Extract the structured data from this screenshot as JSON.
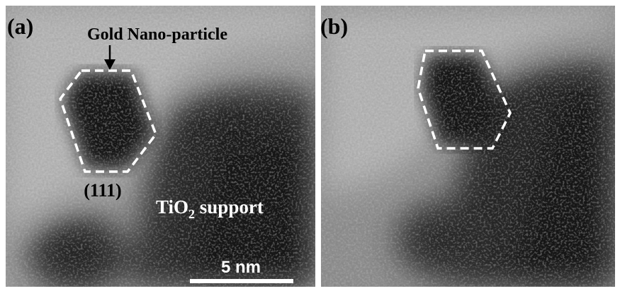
{
  "panels": [
    {
      "label": "(a)",
      "particle_label": "Gold Nano-particle",
      "facet_label": "(111)",
      "support_label": {
        "parts": [
          "TiO",
          "2",
          " support"
        ]
      },
      "scale_bar": "5 nm"
    },
    {
      "label": "(b)"
    }
  ]
}
